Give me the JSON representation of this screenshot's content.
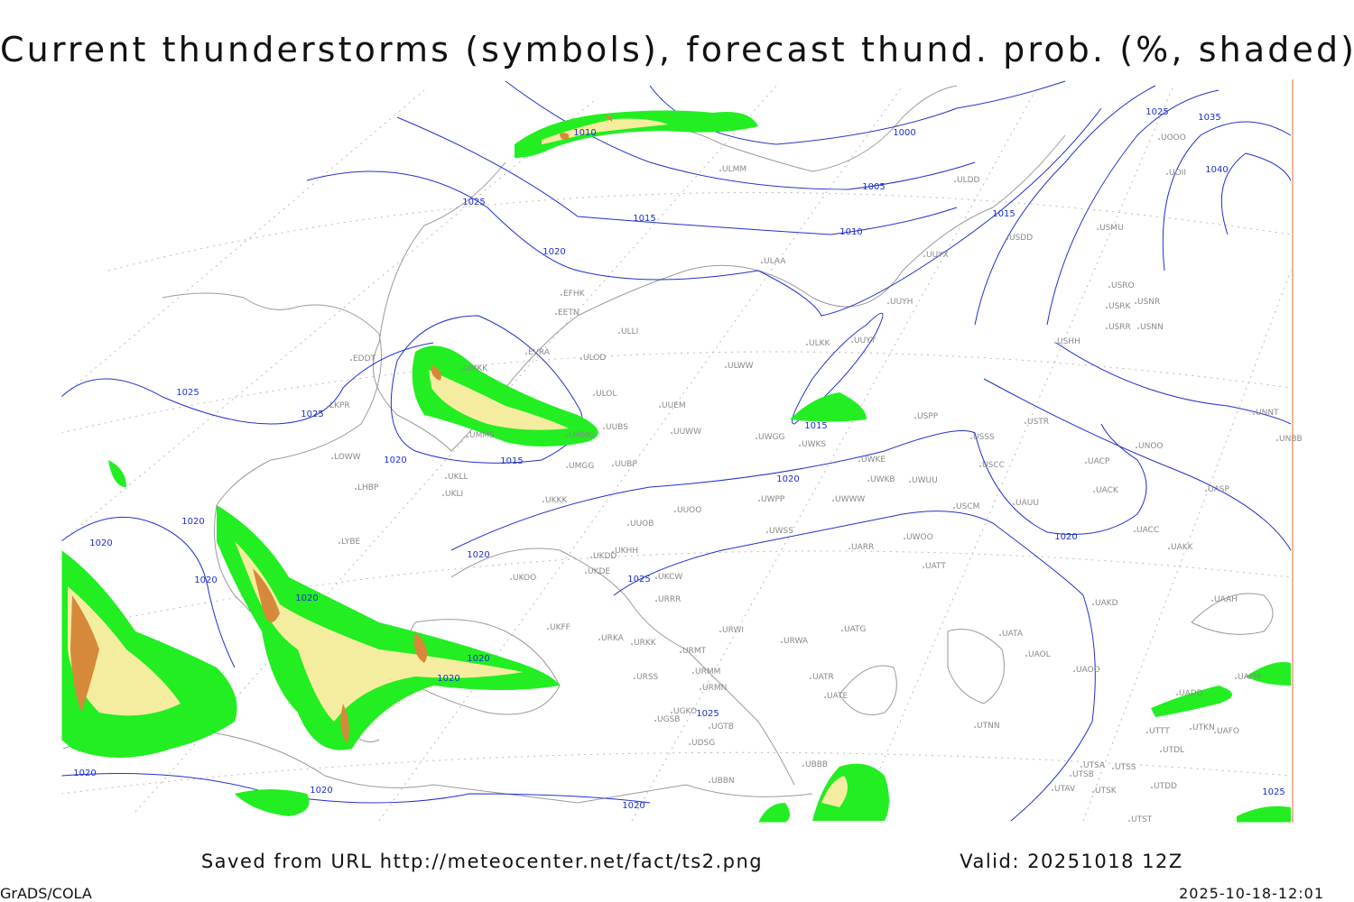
{
  "header": {
    "title": "Current thunderstorms (symbols), forecast thund. prob. (%, shaded)"
  },
  "map": {
    "isobar_labels": [
      "1010",
      "1000",
      "1005",
      "1010",
      "1015",
      "1015",
      "1020",
      "1025",
      "1025",
      "1035",
      "1040",
      "1025",
      "1025",
      "1020",
      "1015",
      "1015",
      "1020",
      "1020",
      "1020",
      "1020",
      "1020",
      "1020",
      "1020",
      "1025",
      "1020",
      "1020",
      "1025",
      "1020",
      "1020",
      "1020",
      "1025"
    ],
    "stations": [
      "EFHK",
      "EETN",
      "EVRA",
      "ULOD",
      "UMKK",
      "ULOL",
      "UUEM",
      "UMMS",
      "UUWW",
      "EDDT",
      "LKPR",
      "LOWW",
      "LHBP",
      "UKLL",
      "UKLI",
      "UKKK",
      "UUOO",
      "UUOB",
      "UKHH",
      "UKDD",
      "UKDE",
      "UKOO",
      "UKCW",
      "URRR",
      "UKFF",
      "URKA",
      "URKK",
      "URMT",
      "URMM",
      "URSS",
      "URMN",
      "UGKO",
      "UGSB",
      "UGTB",
      "UBBB",
      "UBBN",
      "UDSG",
      "UWGG",
      "UWKS",
      "UWKE",
      "UWKB",
      "UWUU",
      "UWPP",
      "UWWW",
      "UWSS",
      "UWOO",
      "UATT",
      "UARR",
      "URWA",
      "URWI",
      "UATG",
      "UATA",
      "UAOL",
      "UAOO",
      "UATE",
      "UATR",
      "UTNN",
      "UAKD",
      "UACC",
      "UAKK",
      "UAAH",
      "UASP",
      "UACK",
      "UACP",
      "USCC",
      "USSS",
      "USTR",
      "UNOO",
      "UNNT",
      "UNBB",
      "USPP",
      "USHH",
      "USRR",
      "USRK",
      "USRO",
      "USNR",
      "USNN",
      "USMU",
      "USDD",
      "UUYY",
      "ULKK",
      "UUYH",
      "UUYX",
      "ULAA",
      "ULDD",
      "ULMM",
      "UOOO",
      "UOII",
      "ULWW",
      "ULLI",
      "UMGG",
      "UUBP",
      "UUBS",
      "UMMG",
      "LYBE",
      "UTSA",
      "UTSB",
      "UTSS",
      "UTAV",
      "UTSK",
      "UTDD",
      "UTST",
      "UTDL",
      "UTTT",
      "UTKN",
      "UAFO",
      "UADD",
      "UAFM",
      "USCM",
      "UAUU"
    ]
  },
  "footer": {
    "source": "Saved from URL http://meteocenter.net/fact/ts2.png",
    "valid": "Valid: 20251018 12Z",
    "software": "GrADS/COLA",
    "timestamp": "2025-10-18-12:01"
  }
}
